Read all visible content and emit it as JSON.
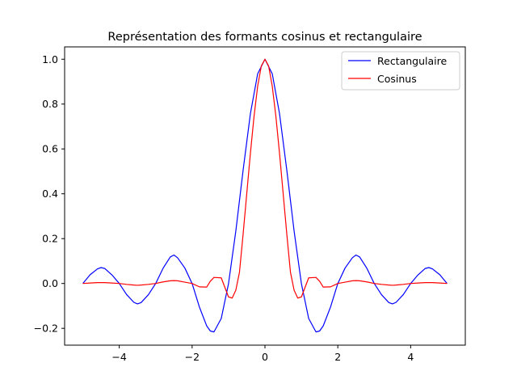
{
  "chart_data": {
    "type": "line",
    "title": "Représentation des formants cosinus et rectangulaire",
    "xlabel": "",
    "ylabel": "",
    "xlim": [
      -5.5,
      5.5
    ],
    "ylim": [
      -0.275,
      1.055
    ],
    "xticks": [
      -4,
      -2,
      0,
      2,
      4
    ],
    "xtick_labels": [
      "−4",
      "−2",
      "0",
      "2",
      "4"
    ],
    "yticks": [
      -0.2,
      0.0,
      0.2,
      0.4,
      0.6,
      0.8,
      1.0
    ],
    "ytick_labels": [
      "−0.2",
      "0.0",
      "0.2",
      "0.4",
      "0.6",
      "0.8",
      "1.0"
    ],
    "grid": false,
    "legend_position": "top-right",
    "series": [
      {
        "name": "Rectangulaire",
        "color": "#0000ff",
        "x": [
          -5.0,
          -4.8,
          -4.6,
          -4.5,
          -4.4,
          -4.2,
          -4.0,
          -3.8,
          -3.6,
          -3.5,
          -3.4,
          -3.2,
          -3.0,
          -2.8,
          -2.6,
          -2.5,
          -2.4,
          -2.2,
          -2.0,
          -1.8,
          -1.6,
          -1.5,
          -1.4,
          -1.2,
          -1.0,
          -0.8,
          -0.6,
          -0.4,
          -0.2,
          0.0,
          0.2,
          0.4,
          0.6,
          0.8,
          1.0,
          1.2,
          1.4,
          1.5,
          1.6,
          1.8,
          2.0,
          2.2,
          2.4,
          2.5,
          2.6,
          2.8,
          3.0,
          3.2,
          3.4,
          3.5,
          3.6,
          3.8,
          4.0,
          4.2,
          4.4,
          4.5,
          4.6,
          4.8,
          5.0
        ],
        "y": [
          0.0,
          0.039,
          0.065,
          0.071,
          0.067,
          0.038,
          0.0,
          -0.049,
          -0.084,
          -0.091,
          -0.085,
          -0.05,
          0.0,
          0.067,
          0.118,
          0.127,
          0.115,
          0.069,
          0.0,
          -0.105,
          -0.189,
          -0.212,
          -0.216,
          -0.156,
          0.0,
          0.234,
          0.505,
          0.757,
          0.935,
          1.0,
          0.935,
          0.757,
          0.505,
          0.234,
          0.0,
          -0.156,
          -0.216,
          -0.212,
          -0.189,
          -0.105,
          0.0,
          0.069,
          0.115,
          0.127,
          0.118,
          0.067,
          0.0,
          -0.05,
          -0.085,
          -0.091,
          -0.084,
          -0.049,
          0.0,
          0.038,
          0.067,
          0.071,
          0.065,
          0.039,
          0.0
        ]
      },
      {
        "name": "Cosinus",
        "color": "#ff0000",
        "x": [
          -5.0,
          -4.8,
          -4.6,
          -4.5,
          -4.4,
          -4.2,
          -4.0,
          -3.8,
          -3.6,
          -3.5,
          -3.4,
          -3.2,
          -3.0,
          -2.8,
          -2.6,
          -2.5,
          -2.4,
          -2.2,
          -2.0,
          -1.8,
          -1.6,
          -1.5,
          -1.4,
          -1.2,
          -1.0,
          -0.9,
          -0.8,
          -0.7,
          -0.6,
          -0.5,
          -0.4,
          -0.3,
          -0.2,
          -0.1,
          0.0,
          0.1,
          0.2,
          0.3,
          0.4,
          0.5,
          0.6,
          0.7,
          0.8,
          0.9,
          1.0,
          1.2,
          1.4,
          1.5,
          1.6,
          1.8,
          2.0,
          2.2,
          2.4,
          2.5,
          2.6,
          2.8,
          3.0,
          3.2,
          3.4,
          3.5,
          3.6,
          3.8,
          4.0,
          4.2,
          4.4,
          4.5,
          4.6,
          4.8,
          5.0
        ],
        "y": [
          0.0,
          0.002,
          0.004,
          0.004,
          0.004,
          0.002,
          0.0,
          -0.004,
          -0.007,
          -0.008,
          -0.007,
          -0.004,
          0.0,
          0.007,
          0.012,
          0.013,
          0.012,
          0.006,
          0.0,
          -0.015,
          -0.016,
          0.01,
          0.027,
          0.025,
          -0.06,
          -0.065,
          -0.03,
          0.05,
          0.22,
          0.4,
          0.58,
          0.745,
          0.88,
          0.97,
          1.0,
          0.97,
          0.88,
          0.745,
          0.58,
          0.4,
          0.22,
          0.05,
          -0.03,
          -0.065,
          -0.06,
          0.025,
          0.027,
          0.01,
          -0.016,
          -0.015,
          0.0,
          0.006,
          0.012,
          0.013,
          0.012,
          0.007,
          0.0,
          -0.004,
          -0.007,
          -0.008,
          -0.007,
          -0.004,
          0.0,
          0.002,
          0.004,
          0.004,
          0.004,
          0.002,
          0.0
        ]
      }
    ]
  }
}
